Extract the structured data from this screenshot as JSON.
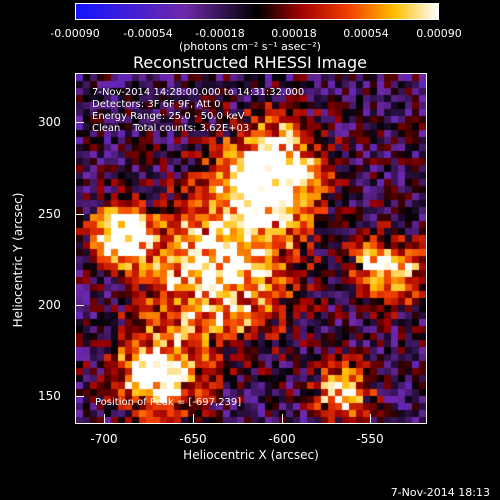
{
  "colorbar": {
    "ticks": [
      "-0.00090",
      "-0.00054",
      "-0.00018",
      "0.00018",
      "0.00054",
      "0.00090"
    ],
    "units": "(photons cm⁻² s⁻¹ asec⁻²)"
  },
  "title": "Reconstructed RHESSI Image",
  "info": {
    "line1": "7-Nov-2014 14:28:00.000 to 14:31:32.000",
    "line2": "Detectors: 3F 6F 9F, Att 0",
    "line3": "Energy Range: 25.0 - 50.0 keV",
    "line4": "Clean    Total counts: 3.62E+03"
  },
  "peak": "Position of Peak = [-697,239]",
  "xaxis": {
    "label": "Heliocentric X (arcsec)",
    "ticks": [
      "-700",
      "-650",
      "-600",
      "-550"
    ]
  },
  "yaxis": {
    "label": "Heliocentric Y (arcsec)",
    "ticks": [
      "300",
      "250",
      "200",
      "150"
    ]
  },
  "timestamp": "7-Nov-2014 18:13",
  "colors": {
    "background": "#000000",
    "foreground": "#ffffff"
  }
}
